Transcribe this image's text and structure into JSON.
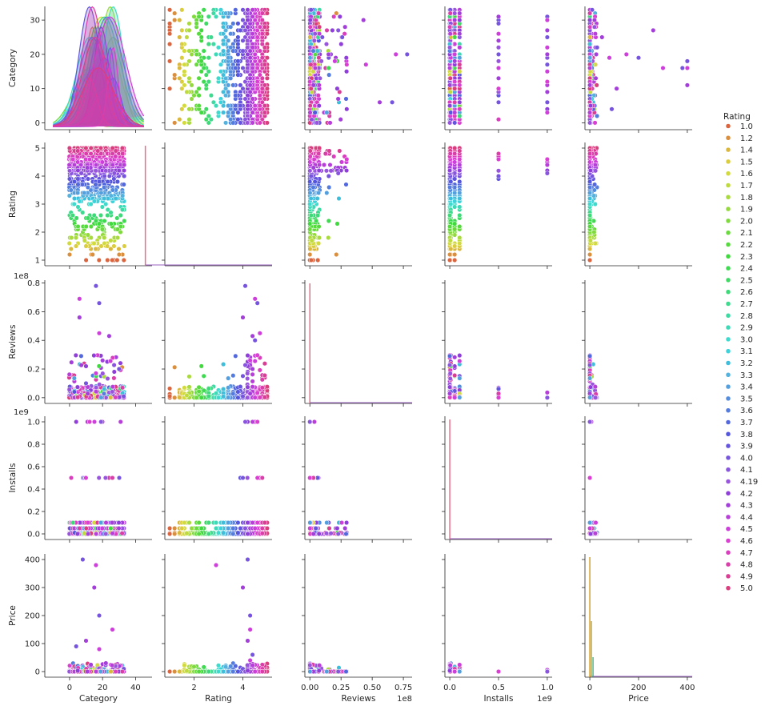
{
  "chart_data": {
    "type": "scatter",
    "kind": "pairplot",
    "variables": [
      "Category",
      "Rating",
      "Reviews",
      "Installs",
      "Price"
    ],
    "hue_variable": "Rating",
    "diagonal": "kde",
    "legend": {
      "title": "Rating",
      "placement": "right",
      "entries": [
        "1.0",
        "1.2",
        "1.4",
        "1.5",
        "1.6",
        "1.7",
        "1.8",
        "1.9",
        "2.0",
        "2.1",
        "2.2",
        "2.3",
        "2.4",
        "2.5",
        "2.6",
        "2.7",
        "2.8",
        "2.9",
        "3.0",
        "3.1",
        "3.2",
        "3.3",
        "3.4",
        "3.5",
        "3.6",
        "3.7",
        "3.8",
        "3.9",
        "4.0",
        "4.1",
        "4.19",
        "4.2",
        "4.3",
        "4.4",
        "4.5",
        "4.6",
        "4.7",
        "4.8",
        "4.9",
        "5.0"
      ]
    },
    "axes": {
      "Category": {
        "label": "Category",
        "range": [
          -15,
          50
        ],
        "ticks": [
          0,
          20,
          40
        ],
        "tick_labels": [
          "0",
          "20",
          "40"
        ],
        "y_range": [
          -2,
          34
        ],
        "y_ticks": [
          0,
          10,
          20,
          30
        ],
        "y_tick_labels": [
          "0",
          "10",
          "20",
          "30"
        ],
        "offset_text": ""
      },
      "Rating": {
        "label": "Rating",
        "range": [
          0.8,
          5.2
        ],
        "ticks": [
          2,
          4
        ],
        "tick_labels": [
          "2",
          "4"
        ],
        "y_range": [
          0.8,
          5.2
        ],
        "y_ticks": [
          1,
          2,
          3,
          4,
          5
        ],
        "y_tick_labels": [
          "1",
          "2",
          "3",
          "4",
          "5"
        ],
        "offset_text": ""
      },
      "Reviews": {
        "label": "Reviews",
        "range": [
          -0.04,
          0.82
        ],
        "ticks": [
          0.0,
          0.25,
          0.5,
          0.75
        ],
        "tick_labels": [
          "0.00",
          "0.25",
          "0.50",
          "0.75"
        ],
        "y_range": [
          -0.04,
          0.82
        ],
        "y_ticks": [
          0.0,
          0.2,
          0.4,
          0.6,
          0.8
        ],
        "y_tick_labels": [
          "0.0",
          "0.2",
          "0.4",
          "0.6",
          "0.8"
        ],
        "offset_text": "1e8"
      },
      "Installs": {
        "label": "Installs",
        "range": [
          -0.05,
          1.05
        ],
        "ticks": [
          0.0,
          0.5,
          1.0
        ],
        "tick_labels": [
          "0.0",
          "0.5",
          "1.0"
        ],
        "y_range": [
          -0.05,
          1.05
        ],
        "y_ticks": [
          0.0,
          0.2,
          0.4,
          0.6,
          0.8,
          1.0
        ],
        "y_tick_labels": [
          "0.0",
          "0.2",
          "0.4",
          "0.6",
          "0.8",
          "1.0"
        ],
        "offset_text": "1e9"
      },
      "Price": {
        "label": "Price",
        "range": [
          -20,
          420
        ],
        "ticks": [
          0,
          200,
          400
        ],
        "tick_labels": [
          "0",
          "200",
          "400"
        ],
        "y_range": [
          -20,
          420
        ],
        "y_ticks": [
          0,
          100,
          200,
          300,
          400
        ],
        "y_tick_labels": [
          "0",
          "100",
          "200",
          "300",
          "400"
        ],
        "offset_text": ""
      }
    },
    "outliers": {
      "category_reviews": [
        [
          16,
          0.78
        ],
        [
          6,
          0.69
        ],
        [
          6,
          0.56
        ],
        [
          18,
          0.66
        ],
        [
          18,
          0.45
        ],
        [
          24,
          0.43
        ],
        [
          10,
          0.1
        ],
        [
          16,
          0.17
        ],
        [
          20,
          0.26
        ],
        [
          30,
          0.2
        ]
      ],
      "rating_reviews": [
        [
          4.1,
          0.78
        ],
        [
          4.5,
          0.69
        ],
        [
          4.0,
          0.56
        ],
        [
          4.6,
          0.66
        ],
        [
          4.7,
          0.45
        ],
        [
          4.4,
          0.43
        ],
        [
          4.5,
          0.4
        ],
        [
          4.3,
          0.26
        ],
        [
          4.4,
          0.2
        ]
      ],
      "category_price": [
        [
          8,
          400
        ],
        [
          16,
          380
        ],
        [
          15,
          300
        ],
        [
          18,
          200
        ],
        [
          26,
          150
        ],
        [
          10,
          110
        ],
        [
          4,
          90
        ],
        [
          18,
          80
        ],
        [
          22,
          30
        ]
      ],
      "rating_price": [
        [
          4.2,
          400
        ],
        [
          2.9,
          380
        ],
        [
          4.0,
          300
        ],
        [
          4.3,
          200
        ],
        [
          4.3,
          150
        ],
        [
          4.2,
          110
        ],
        [
          4.4,
          60
        ],
        [
          4.3,
          40
        ]
      ],
      "reviews_category": [
        [
          0.78,
          20
        ],
        [
          0.69,
          20
        ],
        [
          0.56,
          6
        ],
        [
          0.66,
          6
        ],
        [
          0.45,
          17
        ],
        [
          0.43,
          30
        ],
        [
          0.26,
          25
        ],
        [
          0.2,
          18
        ],
        [
          0.15,
          20
        ],
        [
          0.1,
          25
        ]
      ],
      "installs_category": [
        [
          1.0,
          31
        ],
        [
          1.0,
          30
        ],
        [
          1.0,
          27
        ],
        [
          1.0,
          25
        ],
        [
          1.0,
          22
        ],
        [
          1.0,
          20
        ],
        [
          1.0,
          17
        ],
        [
          1.0,
          15
        ],
        [
          1.0,
          9
        ],
        [
          1.0,
          6
        ],
        [
          1.0,
          3
        ],
        [
          0.5,
          31
        ],
        [
          0.5,
          29
        ],
        [
          0.5,
          26
        ],
        [
          0.5,
          24
        ],
        [
          0.5,
          20
        ],
        [
          0.5,
          16
        ],
        [
          0.5,
          13
        ],
        [
          0.5,
          6
        ]
      ],
      "price_category": [
        [
          400,
          18
        ],
        [
          400,
          16
        ],
        [
          400,
          11
        ],
        [
          380,
          16
        ],
        [
          300,
          16
        ],
        [
          260,
          27
        ],
        [
          200,
          19
        ],
        [
          150,
          20
        ],
        [
          110,
          10
        ],
        [
          90,
          4
        ],
        [
          80,
          19
        ],
        [
          50,
          25
        ],
        [
          30,
          22
        ]
      ]
    }
  }
}
